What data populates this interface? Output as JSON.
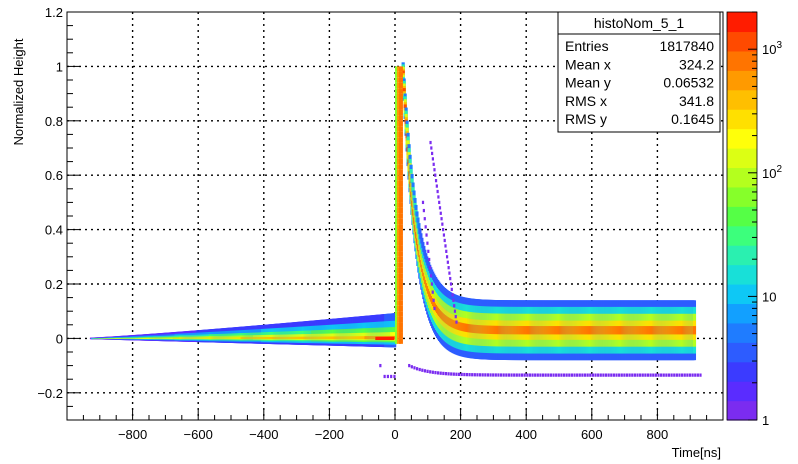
{
  "chart_data": {
    "type": "heatmap",
    "title": "",
    "xlabel": "Time[ns]",
    "ylabel": "Normalized Height",
    "xlim": [
      -1000,
      1000
    ],
    "ylim": [
      -0.3,
      1.2
    ],
    "x_ticks": [
      -800,
      -600,
      -400,
      -200,
      0,
      200,
      400,
      600,
      800
    ],
    "x_tick_labels": [
      "−800",
      "−600",
      "−400",
      "−200",
      "0",
      "200",
      "400",
      "600",
      "800"
    ],
    "y_ticks": [
      -0.2,
      0,
      0.2,
      0.4,
      0.6,
      0.8,
      1,
      1.2
    ],
    "y_tick_labels": [
      "−0.2",
      "0",
      "0.2",
      "0.4",
      "0.6",
      "0.8",
      "1",
      "1.2"
    ],
    "grid": true,
    "colorbar": {
      "scale": "log",
      "range": [
        1,
        2000
      ],
      "tick_values": [
        1,
        10,
        100,
        1000
      ],
      "labels": [
        {
          "base": "1",
          "exp": ""
        },
        {
          "base": "10",
          "exp": ""
        },
        {
          "base": "10",
          "exp": "2"
        },
        {
          "base": "10",
          "exp": "3"
        }
      ],
      "colors": [
        "#7b2cf0",
        "#5a2cff",
        "#3b3bff",
        "#2d5cff",
        "#1f7cff",
        "#12a0ff",
        "#0ec8f5",
        "#18e0d8",
        "#2af0b0",
        "#3cff7c",
        "#55ff46",
        "#86ff2a",
        "#b4ff1e",
        "#dcff14",
        "#ffff0a",
        "#ffe000",
        "#ffbf00",
        "#ff9a00",
        "#ff7400",
        "#ff4a00",
        "#ff1c00"
      ]
    },
    "stats_box": {
      "name": "histoNom_5_1",
      "rows": [
        {
          "label": "Entries",
          "value": "1817840"
        },
        {
          "label": "Mean x",
          "value": "324.2"
        },
        {
          "label": "Mean y",
          "value": "0.06532"
        },
        {
          "label": "RMS x",
          "value": "341.8"
        },
        {
          "label": "RMS y",
          "value": "0.1645"
        }
      ],
      "position": "top-right"
    },
    "pulse_shape": {
      "peak_x": 10,
      "peak_y": 1.0,
      "baseline_x_range": [
        -930,
        910
      ],
      "tail_end_y": 0.03
    }
  }
}
